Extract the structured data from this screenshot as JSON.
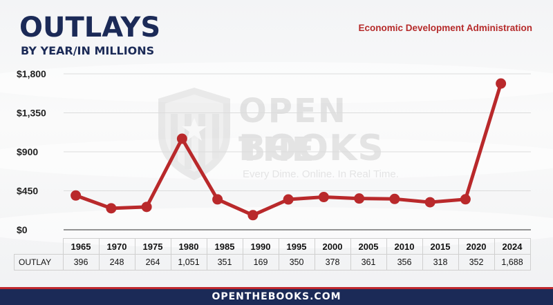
{
  "header": {
    "title": "OUTLAYS",
    "subtitle": "BY YEAR/IN MILLIONS",
    "agency": "Economic Development Administration"
  },
  "watermark": {
    "line1": "OPEN THE",
    "line2": "BOOKS",
    "tagline": "Every Dime. Online. In Real Time."
  },
  "footer": {
    "text": "OPENTHEBOOKS.COM"
  },
  "colors": {
    "line": "#b9292b",
    "title": "#1b2a57",
    "accent": "#c0282d"
  },
  "chart_data": {
    "type": "line",
    "categories": [
      "1965",
      "1970",
      "1975",
      "1980",
      "1985",
      "1990",
      "1995",
      "2000",
      "2005",
      "2010",
      "2015",
      "2020",
      "2024"
    ],
    "values": [
      396,
      248,
      264,
      1051,
      351,
      169,
      350,
      378,
      361,
      356,
      318,
      352,
      1688
    ],
    "value_labels": [
      "396",
      "248",
      "264",
      "1,051",
      "351",
      "169",
      "350",
      "378",
      "361",
      "356",
      "318",
      "352",
      "1,688"
    ],
    "row_label": "OUTLAY",
    "yticks": [
      0,
      450,
      900,
      1350,
      1800
    ],
    "ytick_labels": [
      "$0",
      "$450",
      "$900",
      "$1,350",
      "$1,800"
    ],
    "ylim": [
      0,
      1800
    ],
    "grid": true,
    "legend": "none"
  }
}
